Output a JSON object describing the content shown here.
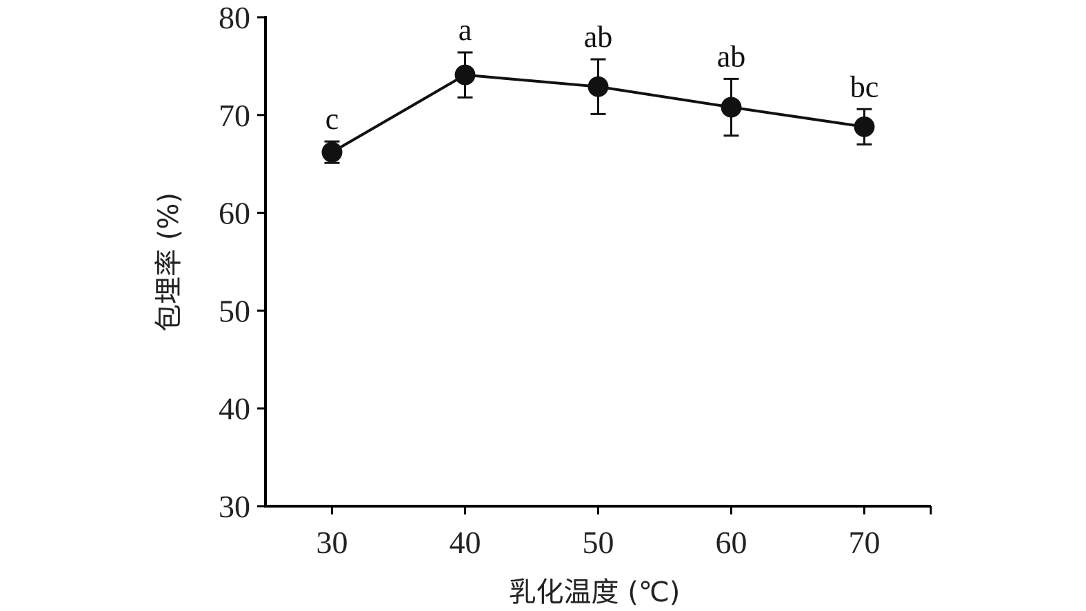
{
  "chart_data": {
    "type": "line",
    "title": "",
    "xlabel": "乳化温度 (℃)",
    "ylabel": "包埋率 (%)",
    "x": [
      30,
      40,
      50,
      60,
      70
    ],
    "xticks": [
      30,
      40,
      50,
      60,
      70
    ],
    "xlim": [
      25,
      75
    ],
    "yticks": [
      30,
      40,
      50,
      60,
      70,
      80
    ],
    "ylim": [
      30,
      80
    ],
    "grid": false,
    "legend": "none",
    "series": [
      {
        "values": [
          66.2,
          74.1,
          72.9,
          70.8,
          68.8
        ],
        "error": [
          1.1,
          2.3,
          2.8,
          2.9,
          1.8
        ],
        "annotations": [
          "c",
          "a",
          "ab",
          "ab",
          "bc"
        ],
        "color": "#111111",
        "marker": "circle"
      }
    ]
  }
}
